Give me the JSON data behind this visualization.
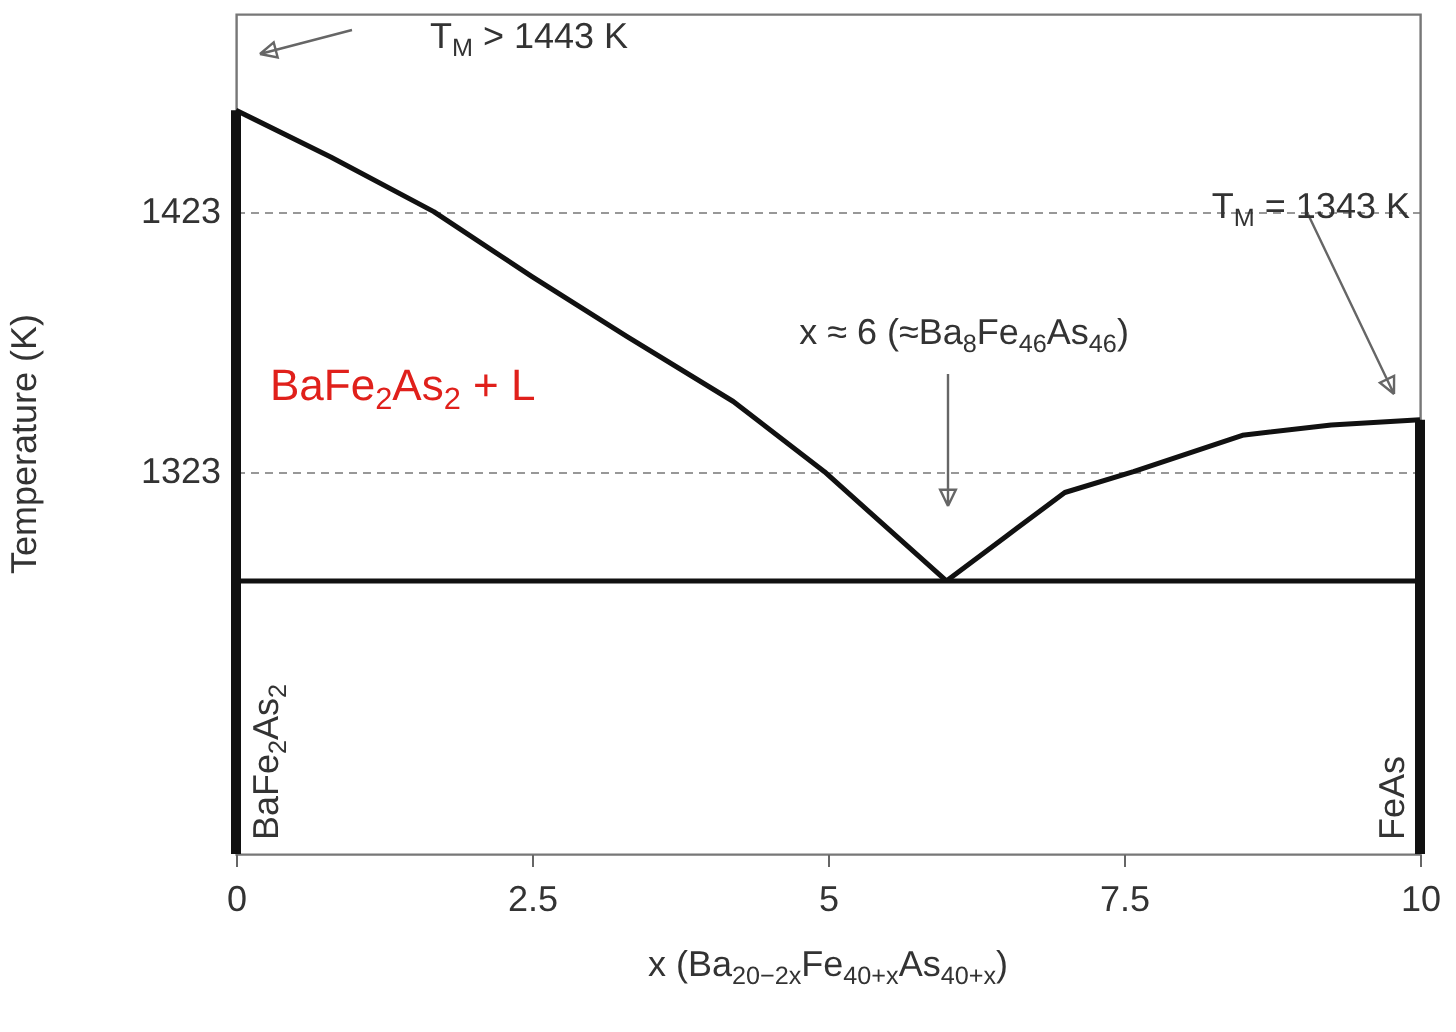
{
  "chart_data": {
    "type": "line",
    "xlabel": "x (Ba$_{20−2x}$Fe$_{40+x}$As$_{40+x}$)",
    "ylabel": "Temperature (K)",
    "xlim": [
      0,
      10
    ],
    "xticks": [
      0,
      2.5,
      5,
      7.5,
      10
    ],
    "ylim": [
      1176,
      1499
    ],
    "yticks": [
      1323,
      1423
    ],
    "grid": "y",
    "series": [
      {
        "color": "#111111",
        "x": [
          0,
          0.8,
          1.67,
          2.5,
          3.3,
          4.2,
          4.97,
          6
        ],
        "values": [
          1462,
          1444,
          1423,
          1398,
          1375,
          1350,
          1323,
          1281
        ]
      },
      {
        "color": "#111111",
        "x": [
          6,
          6.5,
          7,
          7.58,
          8.5,
          9.25,
          10
        ],
        "values": [
          1281,
          1298,
          1315,
          1323,
          1337,
          1341,
          1343
        ]
      },
      {
        "color": "#111111",
        "x": [
          0,
          10
        ],
        "values": [
          1281,
          1281
        ]
      },
      {
        "color": "#111111",
        "x": [
          0,
          0
        ],
        "values": [
          1176,
          1462
        ]
      },
      {
        "color": "#111111",
        "x": [
          10,
          10
        ],
        "values": [
          1176,
          1343
        ]
      }
    ],
    "annotations": [
      "T$_{M}$ > 1443 K",
      "T$_{M}$ = 1343 K",
      "x ≈ 6 (≈Ba$_{8}$Fe$_{46}$As$_{46}$)",
      "BaFe$_{2}$As$_{2}$ + L",
      "BaFe$_{2}$As$_{2}$",
      "FeAs"
    ]
  }
}
